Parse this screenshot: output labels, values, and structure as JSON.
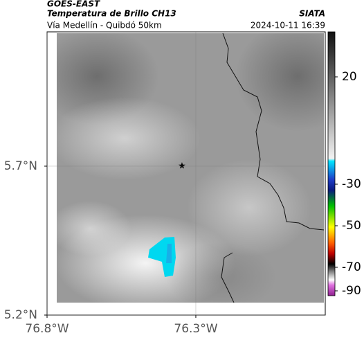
{
  "header": {
    "satellite": "GOES-EAST",
    "product": "Temperatura de Brillo CH13",
    "source": "SIATA",
    "route": "Vía Medellín - Quibdó 50km",
    "timestamp": "2024-10-11 16:39"
  },
  "map": {
    "xlim": [
      -76.8,
      -75.865
    ],
    "ylim": [
      5.2,
      6.151
    ],
    "xticks": [
      {
        "value": -76.8,
        "label": "76.8°W"
      },
      {
        "value": -76.3,
        "label": "76.3°W"
      }
    ],
    "yticks": [
      {
        "value": 5.2,
        "label": "5.2°N"
      },
      {
        "value": 5.7,
        "label": "5.7°N"
      }
    ],
    "grid": true
  },
  "colorbar": {
    "ticks": [
      20,
      -30,
      -50,
      -70,
      -90
    ]
  }
}
